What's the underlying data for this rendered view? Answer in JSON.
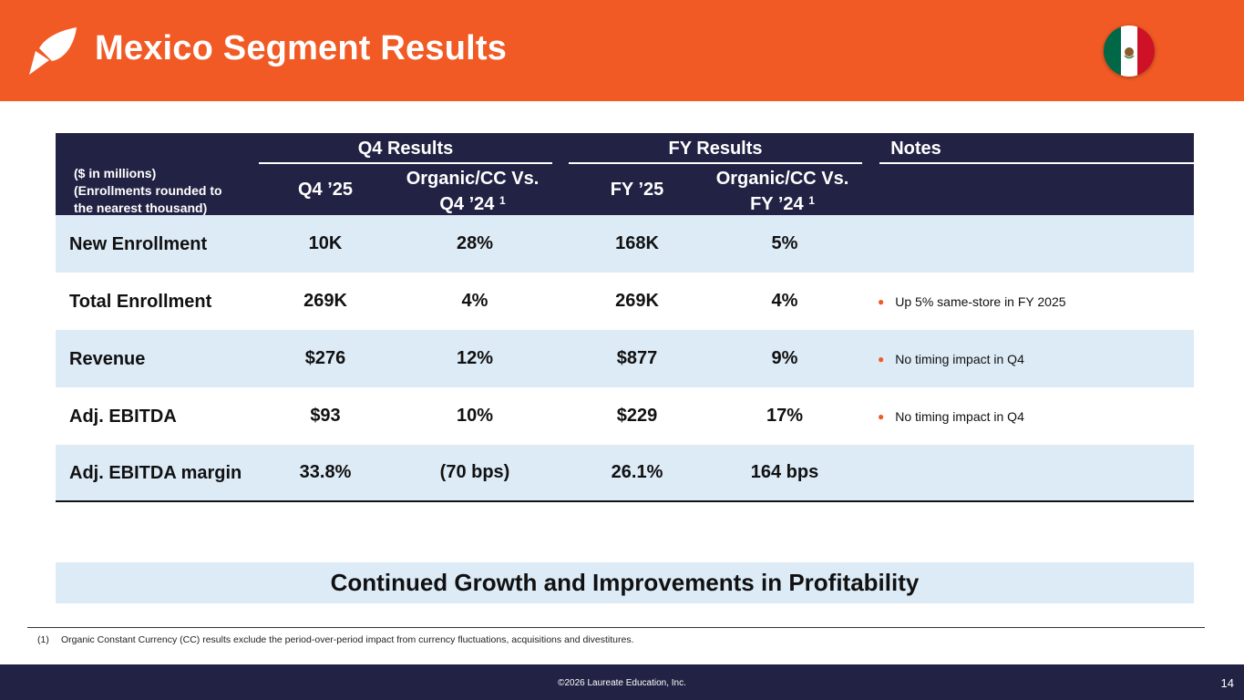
{
  "header": {
    "title": "Mexico Segment Results",
    "brand_color": "#F15A24",
    "logo_icon": "leaf-logo-icon",
    "flag_icon": "mexico-flag-icon"
  },
  "table": {
    "units_note": [
      "($ in millions)",
      "(Enrollments rounded to",
      "the nearest thousand)"
    ],
    "groups": {
      "q4": "Q4 Results",
      "fy": "FY Results",
      "notes": "Notes"
    },
    "columns": {
      "q4_current": "Q4 ’25",
      "q4_vs": "Organic/CC Vs.",
      "q4_prior": "Q4 ’24",
      "fy_current": "FY ’25",
      "fy_vs": "Organic/CC Vs.",
      "fy_prior": "FY ’24",
      "footnote_ref": "1"
    },
    "rows": [
      {
        "label": "New Enrollment",
        "q4": "10K",
        "q4_change": "28%",
        "fy": "168K",
        "fy_change": "5%",
        "note": ""
      },
      {
        "label": "Total Enrollment",
        "q4": "269K",
        "q4_change": "4%",
        "fy": "269K",
        "fy_change": "4%",
        "note": "Up 5% same-store in FY 2025"
      },
      {
        "label": "Revenue",
        "q4": "$276",
        "q4_change": "12%",
        "fy": "$877",
        "fy_change": "9%",
        "note": "No timing impact in Q4"
      },
      {
        "label": "Adj. EBITDA",
        "q4": "$93",
        "q4_change": "10%",
        "fy": "$229",
        "fy_change": "17%",
        "note": "No timing impact in Q4"
      },
      {
        "label": "Adj. EBITDA margin",
        "q4": "33.8%",
        "q4_change": "(70 bps)",
        "fy": "26.1%",
        "fy_change": "164 bps",
        "note": ""
      }
    ]
  },
  "banner": "Continued Growth and Improvements in Profitability",
  "footnote": {
    "number": "(1)",
    "text": "Organic Constant Currency (CC) results exclude the period-over-period impact from currency fluctuations, acquisitions and divestitures."
  },
  "footer": {
    "copyright": "©2026 Laureate Education, Inc.",
    "page": "14"
  }
}
